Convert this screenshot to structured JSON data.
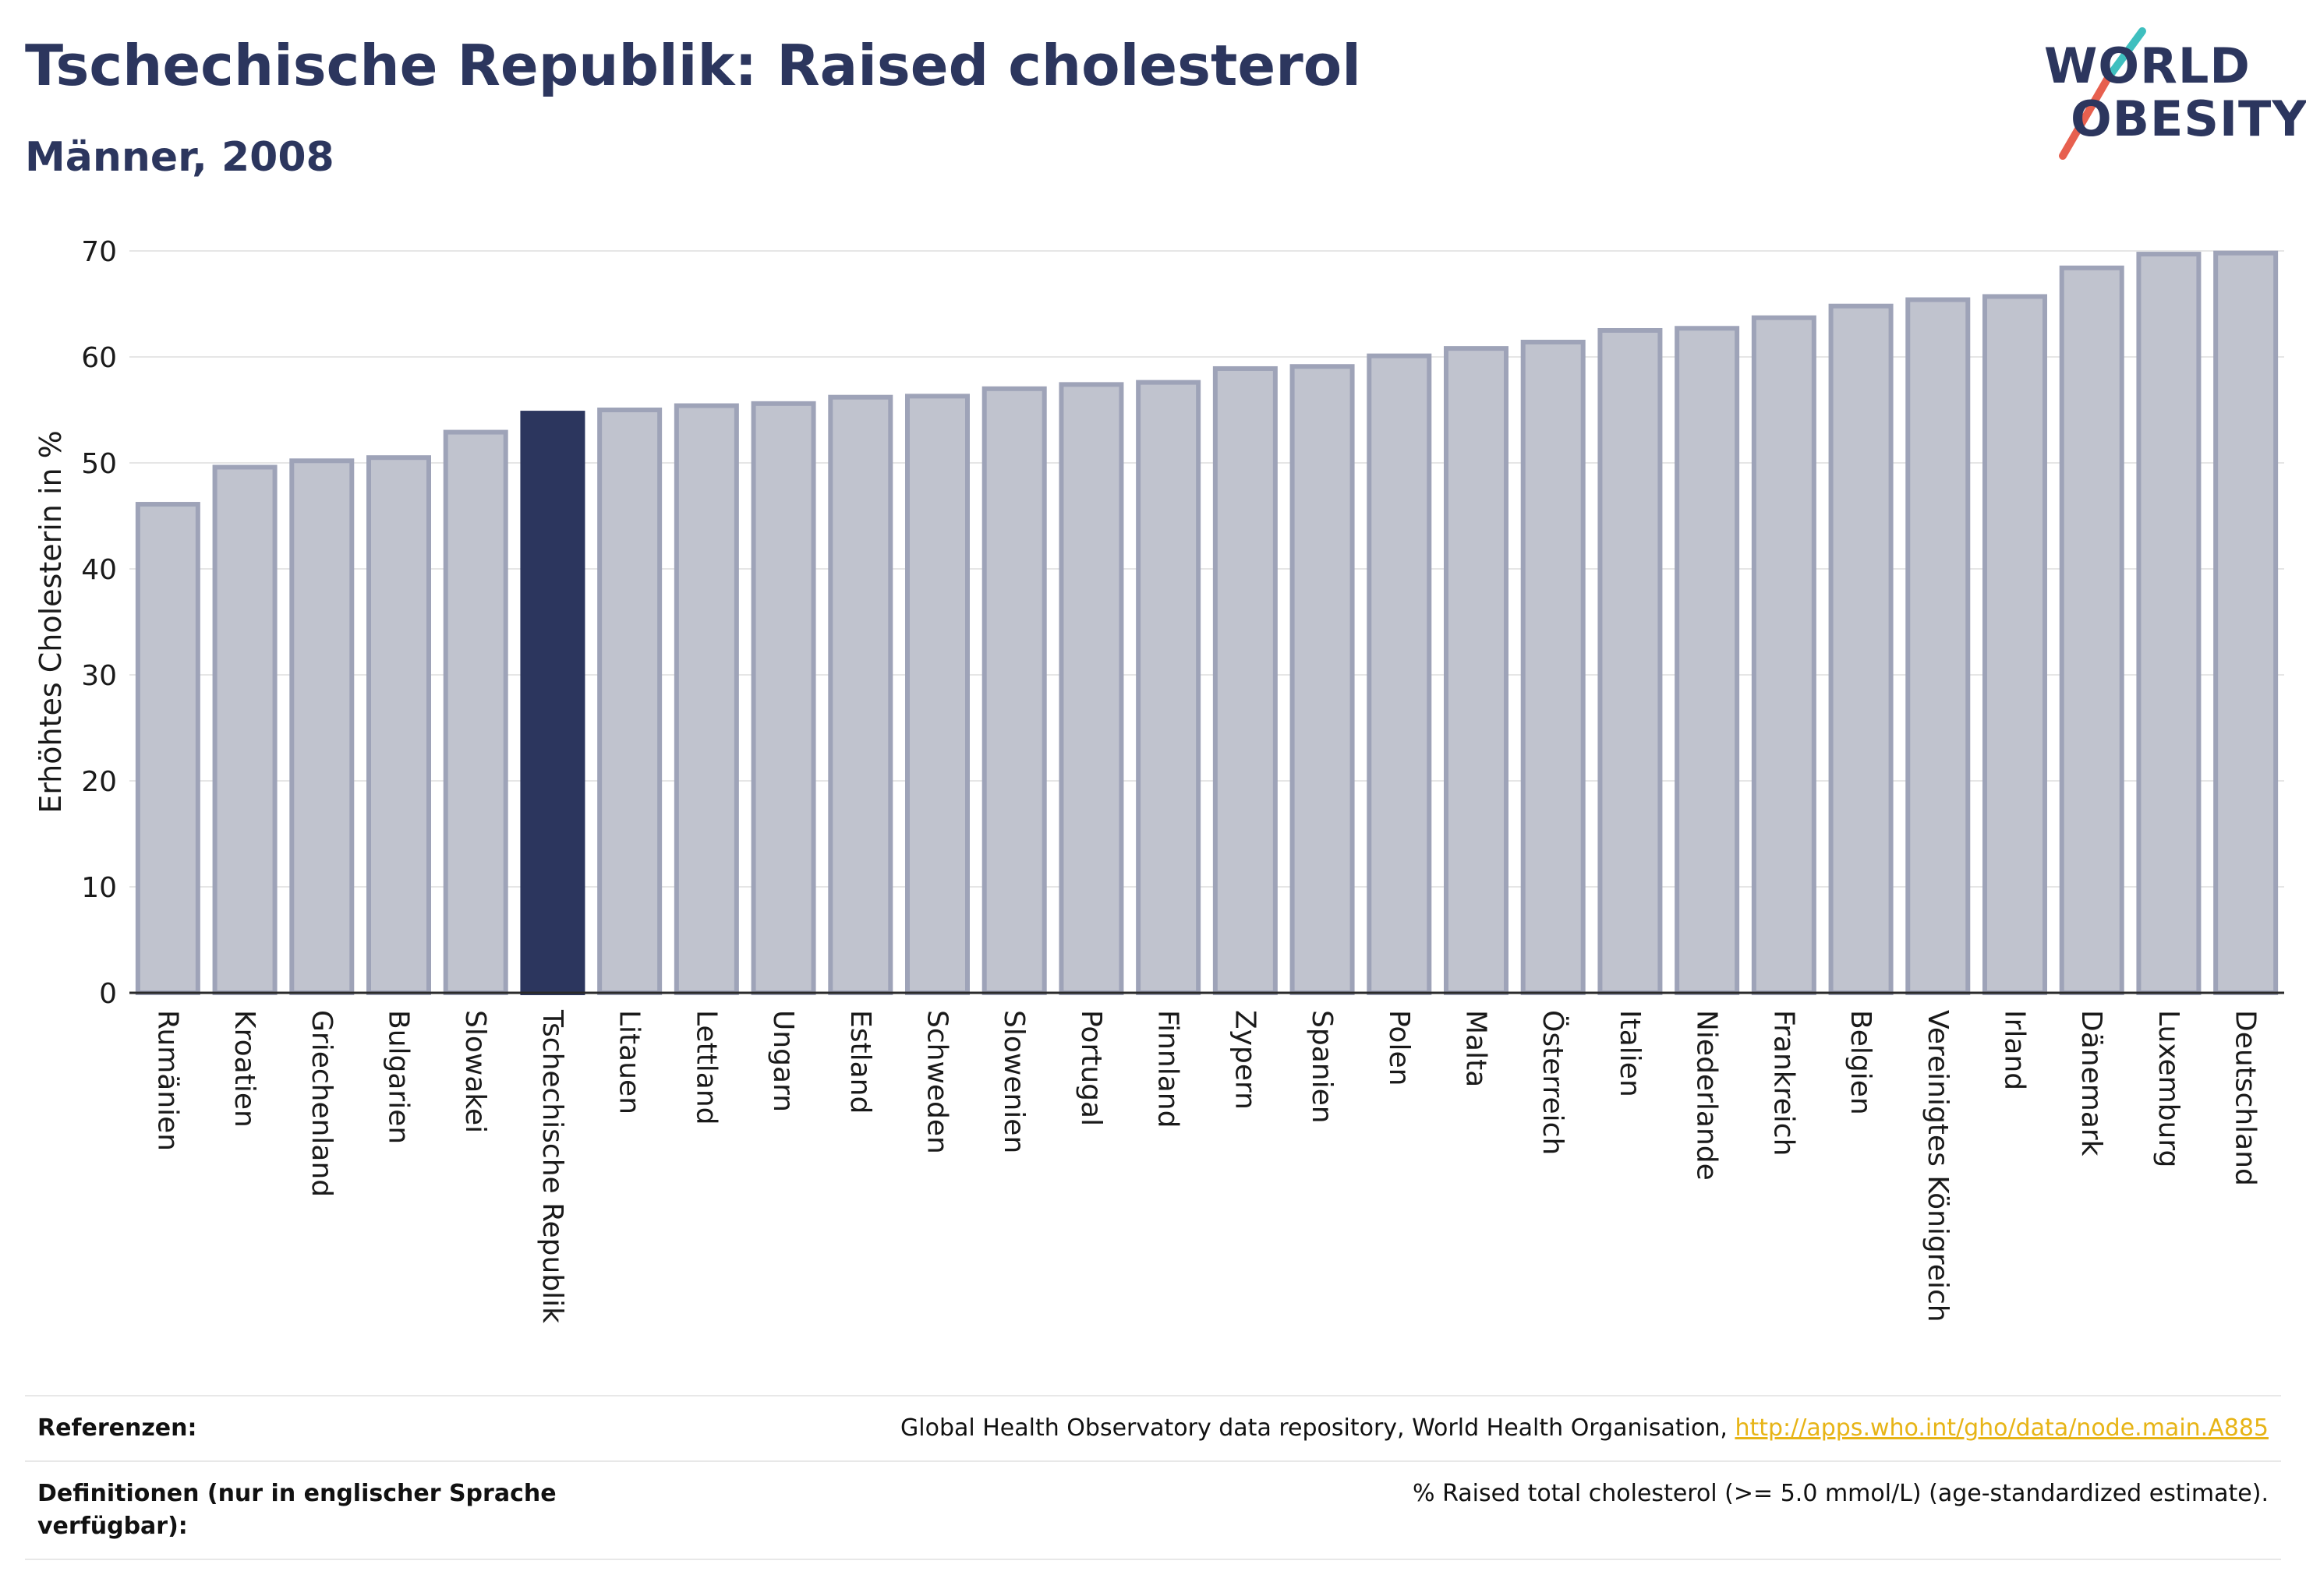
{
  "header": {
    "title": "Tschechische Republik: Raised cholesterol",
    "subtitle": "Männer, 2008"
  },
  "logo": {
    "line1": "WORLD",
    "line2": "OBESITY"
  },
  "colors": {
    "highlight": "#2c365e",
    "bar": "#c0c3ce",
    "bar_border": "#9ea3b8",
    "accent_red": "#e7604f",
    "accent_teal": "#3fbfbf"
  },
  "chart_data": {
    "type": "bar",
    "ylabel": "Erhöhtes Cholesterin in %",
    "ylim": [
      0,
      70
    ],
    "yticks": [
      0,
      10,
      20,
      30,
      40,
      50,
      60,
      70
    ],
    "grid": true,
    "highlight": "Tschechische Republik",
    "categories": [
      "Rumänien",
      "Kroatien",
      "Griechenland",
      "Bulgarien",
      "Slowakei",
      "Tschechische Republik",
      "Litauen",
      "Lettland",
      "Ungarn",
      "Estland",
      "Schweden",
      "Slowenien",
      "Portugal",
      "Finnland",
      "Zypern",
      "Spanien",
      "Polen",
      "Malta",
      "Österreich",
      "Italien",
      "Niederlande",
      "Frankreich",
      "Belgien",
      "Vereinigtes Königreich",
      "Irland",
      "Dänemark",
      "Luxemburg",
      "Deutschland"
    ],
    "values": [
      46.1,
      49.6,
      50.2,
      50.5,
      52.9,
      54.7,
      55.0,
      55.4,
      55.6,
      56.2,
      56.3,
      57.0,
      57.4,
      57.6,
      58.9,
      59.1,
      60.1,
      60.8,
      61.4,
      62.5,
      62.7,
      63.7,
      64.8,
      65.4,
      65.7,
      68.4,
      69.7,
      69.8
    ]
  },
  "footer": {
    "references_label": "Referenzen:",
    "references_text": "Global Health Observatory data repository, World Health Organisation, ",
    "references_link": "http://apps.who.int/gho/data/node.main.A885",
    "definitions_label": "Definitionen (nur in englischer Sprache verfügbar):",
    "definitions_text": "% Raised total cholesterol (>= 5.0 mmol/L) (age-standardized estimate)."
  }
}
